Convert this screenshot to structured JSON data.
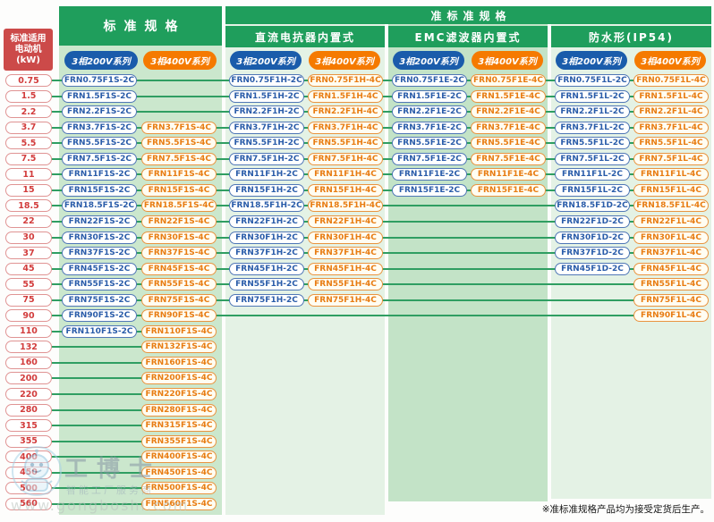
{
  "motor_header": {
    "line1": "标准适用",
    "line2": "电动机",
    "line3": "(kW)"
  },
  "standard": {
    "title": "标准规格",
    "series_200": "3相200V系列",
    "series_400": "3相400V系列"
  },
  "semi_standard": {
    "title": "准标准规格",
    "groups": [
      {
        "title": "直流电抗器内置式",
        "series_200": "3相200V系列",
        "series_400": "3相400V系列"
      },
      {
        "title": "EMC滤波器内置式",
        "series_200": "3相200V系列",
        "series_400": "3相400V系列"
      },
      {
        "title": "防水形(IP54)",
        "series_200": "3相200V系列",
        "series_400": "3相400V系列"
      }
    ]
  },
  "footnote": "※准标准规格产品均为接受定货后生产。",
  "watermark": {
    "name": "工博士",
    "tagline": "智能工厂服务商",
    "url": "www.gongboshi.com"
  },
  "colors": {
    "header_green": "#1f9e5c",
    "band_medium": "#cbe7cd",
    "band_light": "#e4f2e5",
    "series_blue": "#1a5cab",
    "series_orange": "#f57a00",
    "kw_red": "#d23c3c",
    "motor_box_red": "#cc4a49",
    "connector_green": "#2f9e62"
  },
  "rows": [
    {
      "kw": "0.75",
      "models": [
        "FRN0.75F1S-2C",
        null,
        "FRN0.75F1H-2C",
        "FRN0.75F1H-4C",
        "FRN0.75F1E-2C",
        "FRN0.75F1E-4C",
        "FRN0.75F1L-2C",
        "FRN0.75F1L-4C"
      ]
    },
    {
      "kw": "1.5",
      "models": [
        "FRN1.5F1S-2C",
        null,
        "FRN1.5F1H-2C",
        "FRN1.5F1H-4C",
        "FRN1.5F1E-2C",
        "FRN1.5F1E-4C",
        "FRN1.5F1L-2C",
        "FRN1.5F1L-4C"
      ]
    },
    {
      "kw": "2.2",
      "models": [
        "FRN2.2F1S-2C",
        null,
        "FRN2.2F1H-2C",
        "FRN2.2F1H-4C",
        "FRN2.2F1E-2C",
        "FRN2.2F1E-4C",
        "FRN2.2F1L-2C",
        "FRN2.2F1L-4C"
      ]
    },
    {
      "kw": "3.7",
      "models": [
        "FRN3.7F1S-2C",
        "FRN3.7F1S-4C",
        "FRN3.7F1H-2C",
        "FRN3.7F1H-4C",
        "FRN3.7F1E-2C",
        "FRN3.7F1E-4C",
        "FRN3.7F1L-2C",
        "FRN3.7F1L-4C"
      ]
    },
    {
      "kw": "5.5",
      "models": [
        "FRN5.5F1S-2C",
        "FRN5.5F1S-4C",
        "FRN5.5F1H-2C",
        "FRN5.5F1H-4C",
        "FRN5.5F1E-2C",
        "FRN5.5F1E-4C",
        "FRN5.5F1L-2C",
        "FRN5.5F1L-4C"
      ]
    },
    {
      "kw": "7.5",
      "models": [
        "FRN7.5F1S-2C",
        "FRN7.5F1S-4C",
        "FRN7.5F1H-2C",
        "FRN7.5F1H-4C",
        "FRN7.5F1E-2C",
        "FRN7.5F1E-4C",
        "FRN7.5F1L-2C",
        "FRN7.5F1L-4C"
      ]
    },
    {
      "kw": "11",
      "models": [
        "FRN11F1S-2C",
        "FRN11F1S-4C",
        "FRN11F1H-2C",
        "FRN11F1H-4C",
        "FRN11F1E-2C",
        "FRN11F1E-4C",
        "FRN11F1L-2C",
        "FRN11F1L-4C"
      ]
    },
    {
      "kw": "15",
      "models": [
        "FRN15F1S-2C",
        "FRN15F1S-4C",
        "FRN15F1H-2C",
        "FRN15F1H-4C",
        "FRN15F1E-2C",
        "FRN15F1E-4C",
        "FRN15F1L-2C",
        "FRN15F1L-4C"
      ]
    },
    {
      "kw": "18.5",
      "models": [
        "FRN18.5F1S-2C",
        "FRN18.5F1S-4C",
        "FRN18.5F1H-2C",
        "FRN18.5F1H-4C",
        null,
        null,
        "FRN18.5F1D-2C",
        "FRN18.5F1L-4C"
      ]
    },
    {
      "kw": "22",
      "models": [
        "FRN22F1S-2C",
        "FRN22F1S-4C",
        "FRN22F1H-2C",
        "FRN22F1H-4C",
        null,
        null,
        "FRN22F1D-2C",
        "FRN22F1L-4C"
      ]
    },
    {
      "kw": "30",
      "models": [
        "FRN30F1S-2C",
        "FRN30F1S-4C",
        "FRN30F1H-2C",
        "FRN30F1H-4C",
        null,
        null,
        "FRN30F1D-2C",
        "FRN30F1L-4C"
      ]
    },
    {
      "kw": "37",
      "models": [
        "FRN37F1S-2C",
        "FRN37F1S-4C",
        "FRN37F1H-2C",
        "FRN37F1H-4C",
        null,
        null,
        "FRN37F1D-2C",
        "FRN37F1L-4C"
      ]
    },
    {
      "kw": "45",
      "models": [
        "FRN45F1S-2C",
        "FRN45F1S-4C",
        "FRN45F1H-2C",
        "FRN45F1H-4C",
        null,
        null,
        "FRN45F1D-2C",
        "FRN45F1L-4C"
      ]
    },
    {
      "kw": "55",
      "models": [
        "FRN55F1S-2C",
        "FRN55F1S-4C",
        "FRN55F1H-2C",
        "FRN55F1H-4C",
        null,
        null,
        null,
        "FRN55F1L-4C"
      ]
    },
    {
      "kw": "75",
      "models": [
        "FRN75F1S-2C",
        "FRN75F1S-4C",
        "FRN75F1H-2C",
        "FRN75F1H-4C",
        null,
        null,
        null,
        "FRN75F1L-4C"
      ]
    },
    {
      "kw": "90",
      "models": [
        "FRN90F1S-2C",
        "FRN90F1S-4C",
        null,
        null,
        null,
        null,
        null,
        "FRN90F1L-4C"
      ]
    },
    {
      "kw": "110",
      "models": [
        "FRN110F1S-2C",
        "FRN110F1S-4C",
        null,
        null,
        null,
        null,
        null,
        null
      ]
    },
    {
      "kw": "132",
      "models": [
        null,
        "FRN132F1S-4C",
        null,
        null,
        null,
        null,
        null,
        null
      ]
    },
    {
      "kw": "160",
      "models": [
        null,
        "FRN160F1S-4C",
        null,
        null,
        null,
        null,
        null,
        null
      ]
    },
    {
      "kw": "200",
      "models": [
        null,
        "FRN200F1S-4C",
        null,
        null,
        null,
        null,
        null,
        null
      ]
    },
    {
      "kw": "220",
      "models": [
        null,
        "FRN220F1S-4C",
        null,
        null,
        null,
        null,
        null,
        null
      ]
    },
    {
      "kw": "280",
      "models": [
        null,
        "FRN280F1S-4C",
        null,
        null,
        null,
        null,
        null,
        null
      ]
    },
    {
      "kw": "315",
      "models": [
        null,
        "FRN315F1S-4C",
        null,
        null,
        null,
        null,
        null,
        null
      ]
    },
    {
      "kw": "355",
      "models": [
        null,
        "FRN355F1S-4C",
        null,
        null,
        null,
        null,
        null,
        null
      ]
    },
    {
      "kw": "400",
      "models": [
        null,
        "FRN400F1S-4C",
        null,
        null,
        null,
        null,
        null,
        null
      ]
    },
    {
      "kw": "450",
      "models": [
        null,
        "FRN450F1S-4C",
        null,
        null,
        null,
        null,
        null,
        null
      ]
    },
    {
      "kw": "500",
      "models": [
        null,
        "FRN500F1S-4C",
        null,
        null,
        null,
        null,
        null,
        null
      ]
    },
    {
      "kw": "560",
      "models": [
        null,
        "FRN560F1S-4C",
        null,
        null,
        null,
        null,
        null,
        null
      ]
    }
  ]
}
